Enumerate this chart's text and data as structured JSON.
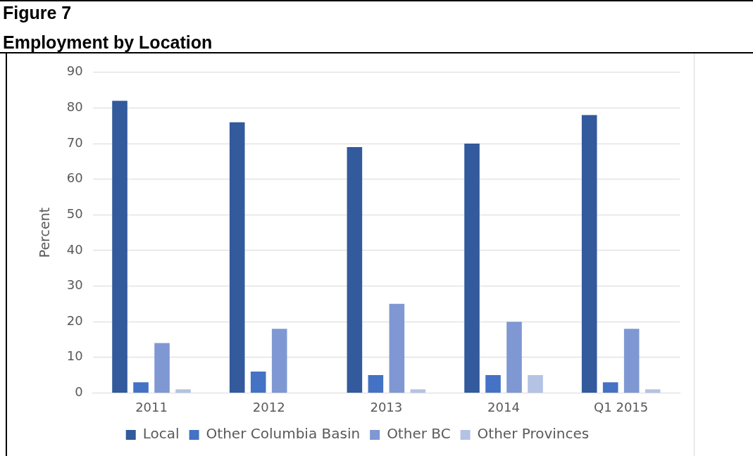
{
  "chart_data": {
    "type": "bar",
    "title": "Employment by Location",
    "annotations": [
      "Figure 7"
    ],
    "ylabel": "Percent",
    "categories": [
      "2011",
      "2012",
      "2013",
      "2014",
      "Q1 2015"
    ],
    "series": [
      {
        "name": "Local",
        "color": "#325a9c",
        "values": [
          82,
          76,
          69,
          70,
          78
        ]
      },
      {
        "name": "Other Columbia Basin",
        "color": "#4472c4",
        "values": [
          3,
          6,
          5,
          5,
          3
        ]
      },
      {
        "name": "Other BC",
        "color": "#7f98d3",
        "values": [
          14,
          18,
          25,
          20,
          18
        ]
      },
      {
        "name": "Other Provinces",
        "color": "#b4c2e4",
        "values": [
          1,
          0,
          1,
          5,
          1
        ]
      }
    ],
    "ylim": [
      0,
      90
    ],
    "yticks": [
      0,
      10,
      20,
      30,
      40,
      50,
      60,
      70,
      80,
      90
    ],
    "grid": "y",
    "legend": "bottom"
  }
}
